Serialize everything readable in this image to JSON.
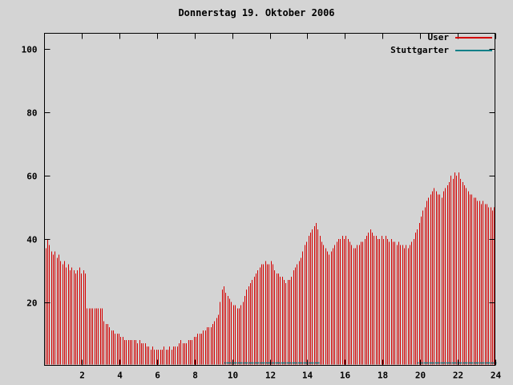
{
  "colors": {
    "background": "#d4d4d4",
    "axis": "#000000",
    "text": "#000000"
  },
  "chart_data": {
    "type": "bar",
    "title": "Donnerstag 19. Oktober 2006",
    "xlabel": "",
    "ylabel": "",
    "xlim": [
      0,
      24
    ],
    "ylim": [
      0,
      105
    ],
    "x_ticks": [
      2,
      4,
      6,
      8,
      10,
      12,
      14,
      16,
      18,
      20,
      22,
      24
    ],
    "y_ticks": [
      20,
      40,
      60,
      80,
      100
    ],
    "grid": false,
    "legend_position": "top-right",
    "x_step": 0.1,
    "series": [
      {
        "name": "User",
        "color": "#d40000",
        "style": "impulses",
        "values": [
          37,
          40,
          38,
          36,
          35,
          36,
          34,
          35,
          33,
          32,
          33,
          31,
          32,
          30,
          31,
          30,
          29,
          30,
          31,
          29,
          30,
          29,
          18,
          18,
          18,
          18,
          18,
          18,
          18,
          18,
          18,
          14,
          13,
          13,
          12,
          11,
          11,
          10,
          10,
          10,
          9,
          9,
          8,
          8,
          8,
          8,
          8,
          8,
          8,
          7,
          8,
          7,
          7,
          7,
          6,
          6,
          5,
          6,
          5,
          5,
          5,
          5,
          5,
          6,
          5,
          5,
          6,
          5,
          6,
          6,
          6,
          7,
          8,
          7,
          7,
          7,
          8,
          8,
          8,
          9,
          9,
          10,
          10,
          10,
          11,
          11,
          12,
          12,
          12,
          13,
          14,
          15,
          16,
          20,
          24,
          25,
          23,
          22,
          21,
          20,
          19,
          19,
          18,
          18,
          19,
          20,
          22,
          24,
          25,
          26,
          27,
          28,
          29,
          30,
          31,
          32,
          32,
          33,
          32,
          32,
          33,
          32,
          30,
          29,
          29,
          28,
          28,
          27,
          26,
          27,
          27,
          28,
          30,
          31,
          32,
          33,
          34,
          36,
          38,
          39,
          41,
          42,
          43,
          44,
          45,
          43,
          41,
          39,
          38,
          37,
          36,
          35,
          36,
          37,
          38,
          39,
          40,
          40,
          41,
          40,
          41,
          40,
          39,
          38,
          37,
          37,
          38,
          38,
          39,
          39,
          40,
          41,
          42,
          43,
          42,
          41,
          41,
          40,
          40,
          41,
          40,
          41,
          40,
          39,
          40,
          39,
          39,
          38,
          39,
          38,
          38,
          37,
          38,
          37,
          38,
          39,
          40,
          42,
          43,
          45,
          47,
          49,
          50,
          52,
          53,
          54,
          55,
          56,
          55,
          54,
          54,
          53,
          55,
          56,
          57,
          58,
          60,
          59,
          61,
          60,
          61,
          59,
          58,
          57,
          56,
          55,
          54,
          54,
          53,
          53,
          52,
          52,
          51,
          52,
          51,
          51,
          50,
          50,
          49,
          50
        ]
      },
      {
        "name": "Stuttgarter",
        "color": "#0e8088",
        "style": "dots",
        "value": 1,
        "ranges": [
          [
            9.6,
            14.6
          ],
          [
            19.9,
            24.0
          ]
        ]
      }
    ]
  }
}
